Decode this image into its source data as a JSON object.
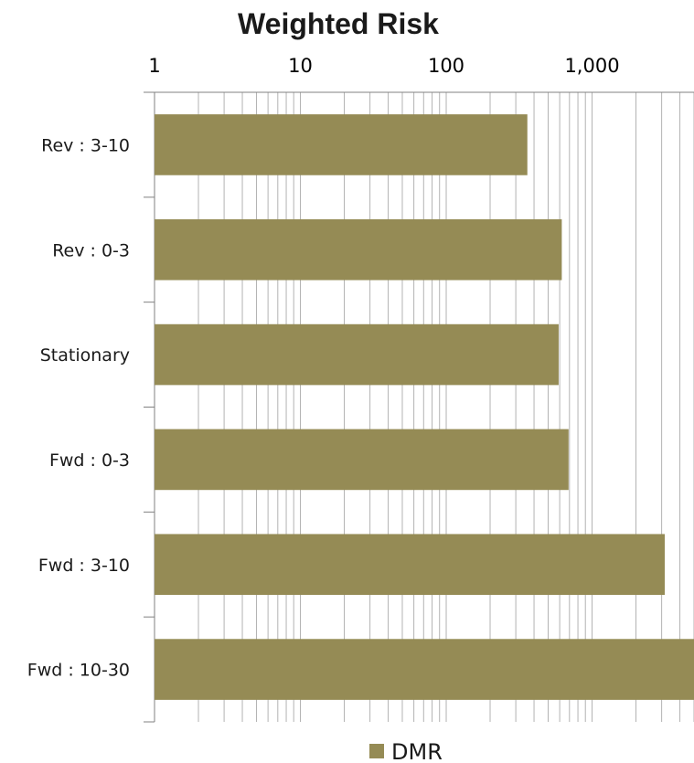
{
  "chart_data": {
    "type": "bar",
    "orientation": "horizontal",
    "title": "Weighted Risk",
    "x_scale": "log",
    "xlim": [
      1,
      5000
    ],
    "x_ticks": [
      1,
      10,
      100,
      1000
    ],
    "x_tick_labels": [
      "1",
      "10",
      "100",
      "1,000"
    ],
    "x_axis_position": "top",
    "grid": true,
    "categories": [
      "Rev : 3-10",
      "Rev : 0-3",
      "Stationary",
      "Fwd : 0-3",
      "Fwd : 3-10",
      "Fwd : 10-30"
    ],
    "series": [
      {
        "name": "DMR",
        "values": [
          360,
          620,
          590,
          690,
          3150,
          5000
        ]
      }
    ],
    "legend": "bottom",
    "colors": {
      "bar": "#958b55",
      "grid": "#b3b3b3",
      "axis": "#808080"
    }
  }
}
